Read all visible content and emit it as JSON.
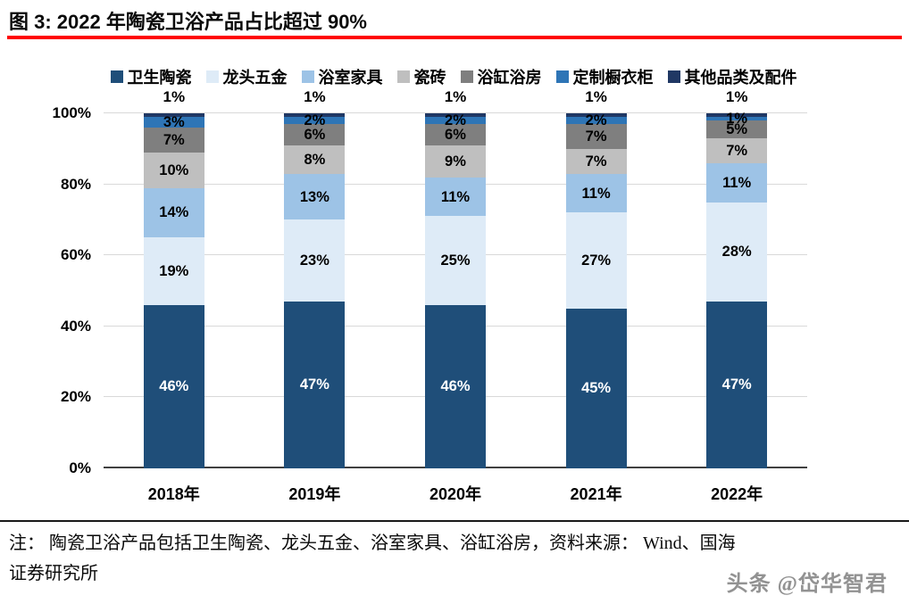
{
  "figure": {
    "title": "图 3:  2022 年陶瓷卫浴产品占比超过 90%",
    "accent_color": "#FF0000"
  },
  "chart_data": {
    "type": "bar",
    "stacked": true,
    "title": "2022 年陶瓷卫浴产品占比超过 90%",
    "categories": [
      "2018年",
      "2019年",
      "2020年",
      "2021年",
      "2022年"
    ],
    "series": [
      {
        "name": "卫生陶瓷",
        "color": "#1F4E79",
        "label_color": "#FFFFFF",
        "values": [
          46,
          47,
          46,
          45,
          47
        ]
      },
      {
        "name": "龙头五金",
        "color": "#DEEBF7",
        "label_color": "#000000",
        "values": [
          19,
          23,
          25,
          27,
          28
        ]
      },
      {
        "name": "浴室家具",
        "color": "#9DC3E6",
        "label_color": "#000000",
        "values": [
          14,
          13,
          11,
          11,
          11
        ]
      },
      {
        "name": "瓷砖",
        "color": "#BFBFBF",
        "label_color": "#000000",
        "values": [
          10,
          8,
          9,
          7,
          7
        ]
      },
      {
        "name": "浴缸浴房",
        "color": "#7F7F7F",
        "label_color": "#000000",
        "values": [
          7,
          6,
          6,
          7,
          5
        ]
      },
      {
        "name": "定制橱衣柜",
        "color": "#2E75B6",
        "label_color": "#000000",
        "values": [
          3,
          2,
          2,
          2,
          1
        ]
      },
      {
        "name": "其他品类及配件",
        "color": "#203864",
        "label_color": "#000000",
        "values": [
          1,
          1,
          1,
          1,
          1
        ],
        "label_position": "above"
      }
    ],
    "y_ticks": [
      "0%",
      "20%",
      "40%",
      "60%",
      "80%",
      "100%"
    ],
    "ylim": [
      0,
      100
    ],
    "grid": true,
    "legend_position": "top",
    "xlabel": "",
    "ylabel": ""
  },
  "note": {
    "lines": [
      "注：  陶瓷卫浴产品包括卫生陶瓷、龙头五金、浴室家具、浴缸浴房，资料来源：  Wind、国海",
      "证券研究所"
    ]
  },
  "watermark": "头条 @岱华智君"
}
